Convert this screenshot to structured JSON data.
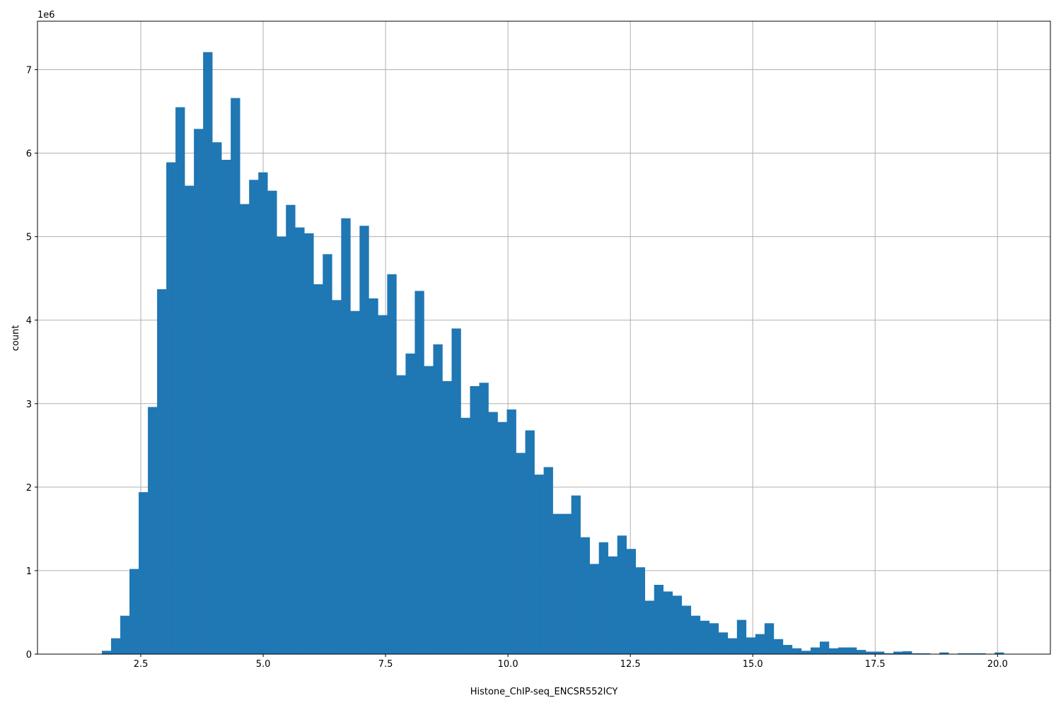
{
  "chart_data": {
    "type": "bar",
    "histogram": true,
    "xlabel": "Histone_ChIP-seq_ENCSR552ICY",
    "ylabel": "count",
    "y_offset_label": "1e6",
    "y_scale": 1000000,
    "xlim": [
      0.39,
      21.08
    ],
    "ylim": [
      0,
      7.58
    ],
    "grid": true,
    "bar_color": "#1f77b4",
    "grid_color": "#b0b0b0",
    "bin_start": 1.705,
    "bin_width": 0.188,
    "xticks": [
      2.5,
      5.0,
      7.5,
      10.0,
      12.5,
      15.0,
      17.5,
      20.0
    ],
    "xtick_labels": [
      "2.5",
      "5.0",
      "7.5",
      "10.0",
      "12.5",
      "15.0",
      "17.5",
      "20.0"
    ],
    "yticks": [
      0,
      1,
      2,
      3,
      4,
      5,
      6,
      7
    ],
    "ytick_labels": [
      "0",
      "1",
      "2",
      "3",
      "4",
      "5",
      "6",
      "7"
    ],
    "values": [
      0.04,
      0.19,
      0.46,
      1.02,
      1.94,
      2.96,
      4.37,
      5.89,
      6.55,
      5.61,
      6.29,
      7.21,
      6.13,
      5.92,
      6.66,
      5.39,
      5.68,
      5.77,
      5.55,
      5.0,
      5.38,
      5.11,
      5.04,
      4.43,
      4.79,
      4.24,
      5.22,
      4.11,
      5.13,
      4.26,
      4.06,
      4.55,
      3.34,
      3.6,
      4.35,
      3.45,
      3.71,
      3.27,
      3.9,
      2.83,
      3.21,
      3.25,
      2.9,
      2.78,
      2.93,
      2.41,
      2.68,
      2.15,
      2.24,
      1.68,
      1.68,
      1.9,
      1.4,
      1.08,
      1.34,
      1.17,
      1.42,
      1.26,
      1.04,
      0.64,
      0.83,
      0.75,
      0.7,
      0.58,
      0.46,
      0.4,
      0.37,
      0.26,
      0.19,
      0.41,
      0.2,
      0.24,
      0.37,
      0.18,
      0.11,
      0.07,
      0.04,
      0.08,
      0.15,
      0.07,
      0.08,
      0.08,
      0.05,
      0.03,
      0.03,
      0.01,
      0.03,
      0.035,
      0.01,
      0.01,
      0.0,
      0.02,
      0.0,
      0.01,
      0.01,
      0.01,
      0.0,
      0.02
    ]
  }
}
